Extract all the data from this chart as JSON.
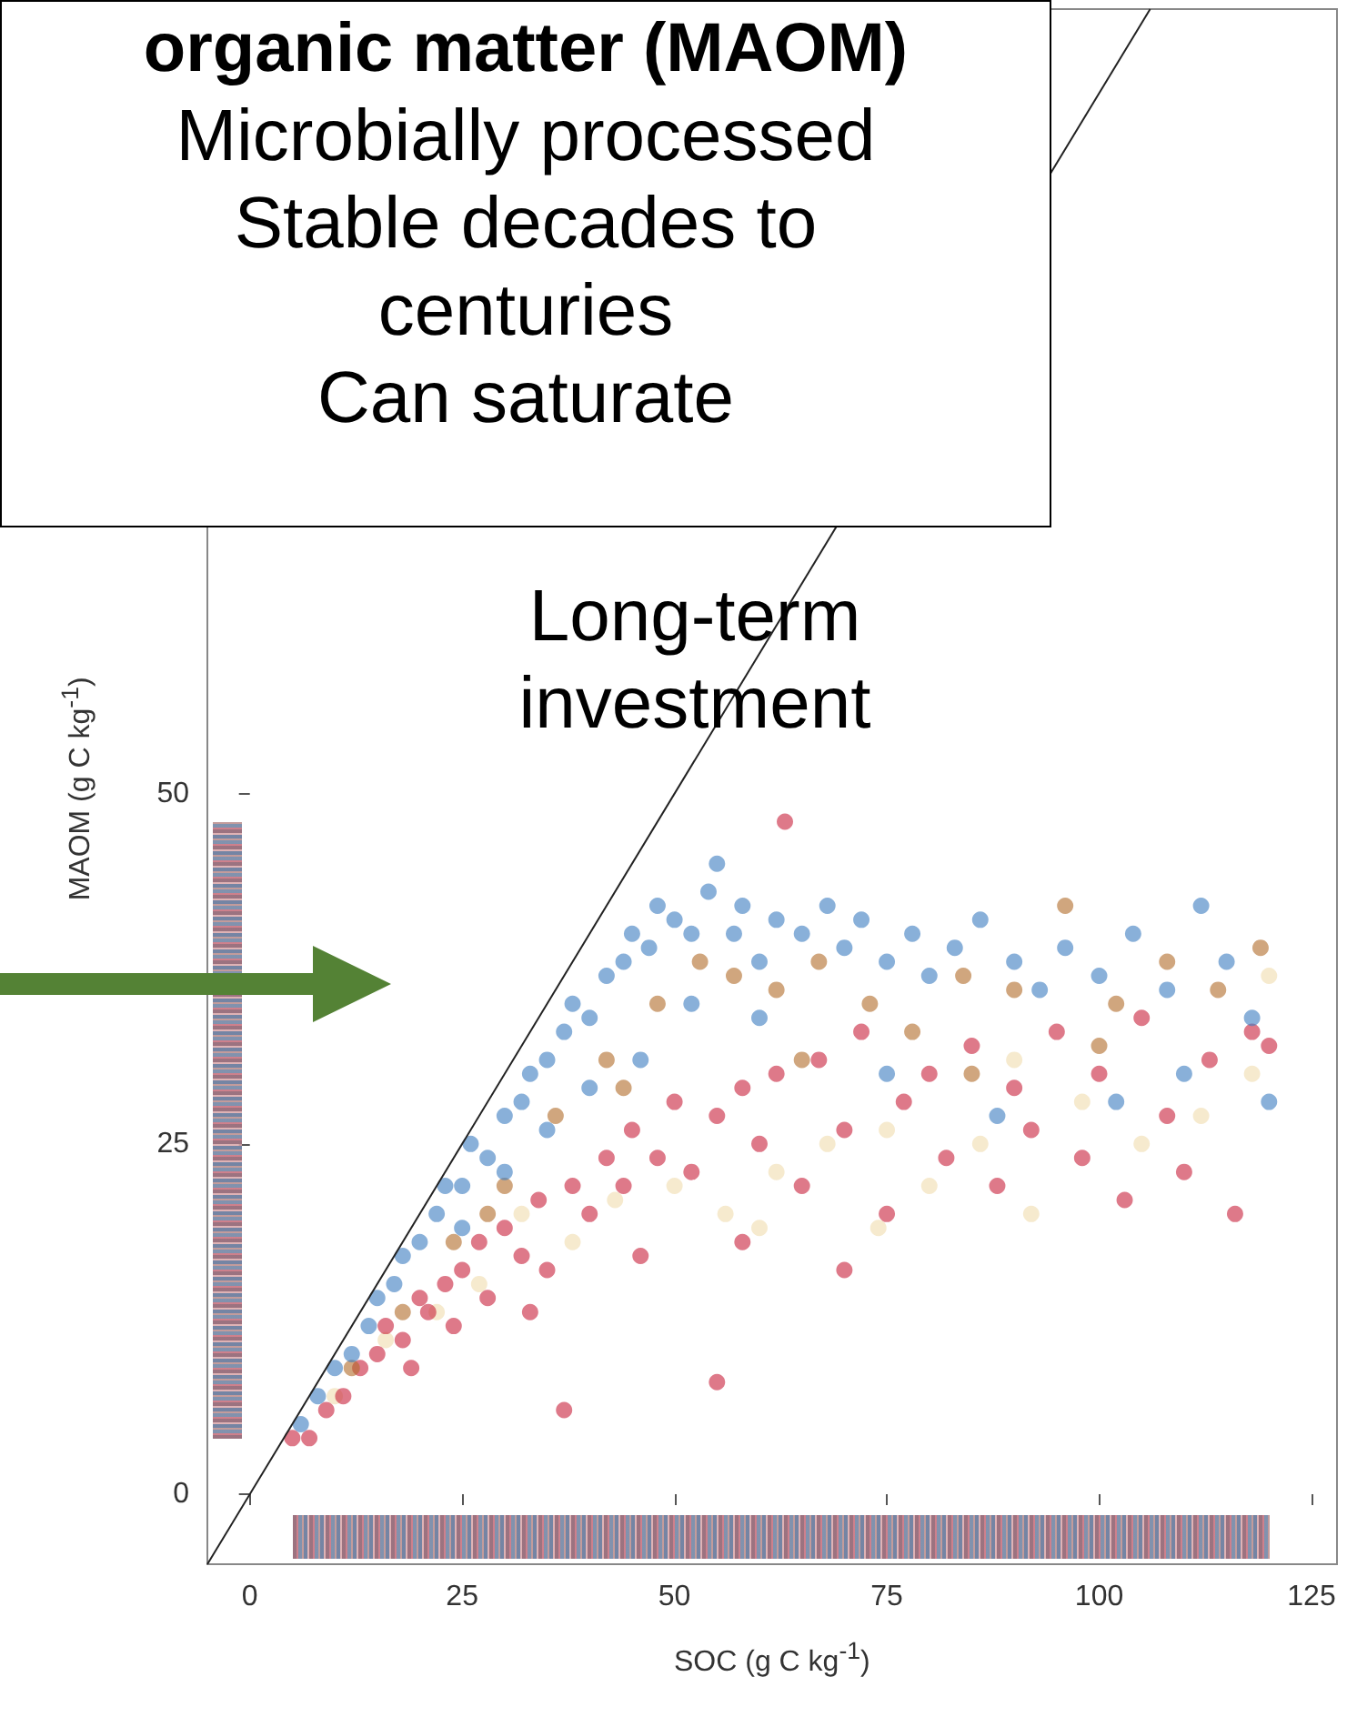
{
  "chart_data": {
    "type": "scatter",
    "xlabel": "SOC (g C kg$^{-1}$)",
    "ylabel": "MAOM (g C kg$^{-1}$)",
    "xlim": [
      -5,
      128
    ],
    "ylim": [
      -5,
      106
    ],
    "xticks": [
      0,
      25,
      50,
      75,
      100,
      125
    ],
    "yticks": [
      0,
      25,
      50
    ],
    "grid": false,
    "marker": "circle",
    "annotations": [
      "organic matter (MAOM)",
      "Microbially processed",
      "Stable decades to centuries",
      "Can saturate",
      "Long-term investment"
    ],
    "series": [
      {
        "color": "#f0dcae",
        "x": [
          10,
          16,
          22,
          27,
          32,
          38,
          43,
          50,
          56,
          62,
          68,
          74,
          80,
          86,
          92,
          98,
          105,
          112,
          118,
          120,
          90,
          60,
          75
        ],
        "values": [
          7,
          11,
          13,
          15,
          20,
          18,
          21,
          22,
          20,
          23,
          25,
          19,
          22,
          25,
          20,
          28,
          25,
          27,
          30,
          37,
          31,
          19,
          26
        ]
      },
      {
        "color": "#c8203a",
        "x": [
          5,
          7,
          9,
          11,
          13,
          15,
          16,
          18,
          20,
          21,
          23,
          25,
          27,
          28,
          30,
          32,
          34,
          35,
          37,
          38,
          40,
          42,
          44,
          45,
          48,
          50,
          52,
          55,
          55,
          58,
          60,
          62,
          63,
          65,
          67,
          70,
          72,
          75,
          77,
          80,
          82,
          85,
          88,
          90,
          92,
          95,
          98,
          100,
          103,
          105,
          108,
          110,
          113,
          116,
          118,
          120,
          33,
          24,
          19,
          46,
          58,
          70
        ],
        "values": [
          4,
          4,
          6,
          7,
          9,
          10,
          12,
          11,
          14,
          13,
          15,
          16,
          18,
          14,
          19,
          17,
          21,
          16,
          6,
          22,
          20,
          24,
          22,
          26,
          24,
          28,
          23,
          8,
          27,
          29,
          25,
          30,
          48,
          22,
          31,
          26,
          33,
          20,
          28,
          30,
          24,
          32,
          22,
          29,
          26,
          33,
          24,
          30,
          21,
          34,
          27,
          23,
          31,
          20,
          33,
          32,
          13,
          12,
          9,
          17,
          18,
          16
        ]
      },
      {
        "color": "#b06a28",
        "x": [
          12,
          18,
          24,
          30,
          36,
          42,
          48,
          53,
          57,
          62,
          67,
          73,
          78,
          84,
          90,
          96,
          102,
          108,
          114,
          119,
          28,
          44,
          65,
          85,
          100
        ],
        "values": [
          9,
          13,
          18,
          22,
          27,
          31,
          35,
          38,
          37,
          36,
          38,
          35,
          33,
          37,
          36,
          42,
          35,
          38,
          36,
          39,
          20,
          29,
          31,
          30,
          32
        ]
      },
      {
        "color": "#3a7cc0",
        "x": [
          6,
          8,
          10,
          12,
          14,
          15,
          17,
          18,
          20,
          22,
          23,
          25,
          26,
          28,
          30,
          32,
          33,
          35,
          37,
          38,
          40,
          42,
          44,
          45,
          47,
          48,
          50,
          52,
          54,
          55,
          57,
          58,
          60,
          62,
          65,
          68,
          70,
          72,
          75,
          78,
          80,
          83,
          86,
          90,
          93,
          96,
          100,
          104,
          108,
          112,
          115,
          118,
          120,
          52,
          60,
          75,
          88,
          102,
          110,
          46,
          40,
          35,
          30,
          25
        ],
        "values": [
          5,
          7,
          9,
          10,
          12,
          14,
          15,
          17,
          18,
          20,
          22,
          22,
          25,
          24,
          27,
          28,
          30,
          31,
          33,
          35,
          34,
          37,
          38,
          40,
          39,
          42,
          41,
          40,
          43,
          45,
          40,
          42,
          38,
          41,
          40,
          42,
          39,
          41,
          38,
          40,
          37,
          39,
          41,
          38,
          36,
          39,
          37,
          40,
          36,
          42,
          38,
          34,
          28,
          35,
          34,
          30,
          27,
          28,
          30,
          31,
          29,
          26,
          23,
          19
        ]
      },
      {
        "type": "line",
        "marker": "none",
        "color": "#222222",
        "x": [
          -5,
          106
        ],
        "values": [
          -5,
          106
        ]
      }
    ]
  }
}
